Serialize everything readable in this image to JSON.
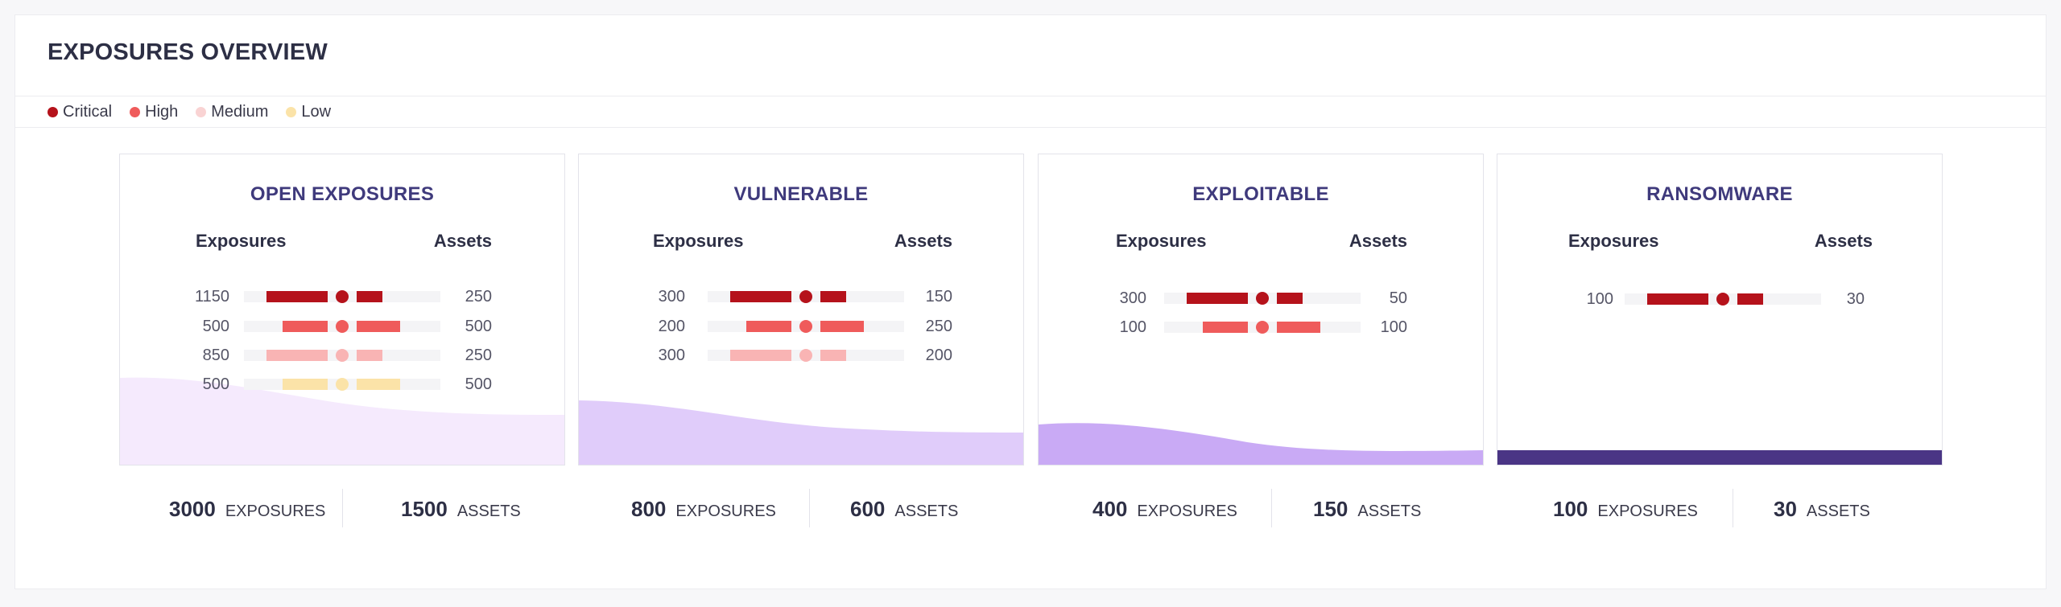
{
  "panel": {
    "title": "EXPOSURES OVERVIEW"
  },
  "legend": [
    {
      "label": "Critical",
      "color": "#b5121b"
    },
    {
      "label": "High",
      "color": "#ef5b5b"
    },
    {
      "label": "Medium",
      "color": "#f9d3d3"
    },
    {
      "label": "Low",
      "color": "#fbe3a8"
    }
  ],
  "colors": {
    "critical": "#b5121b",
    "high": "#ef5b5b",
    "medium": "#f9b4b4",
    "low": "#fbe3a8",
    "track": "#f4f4f6",
    "wave_1": "#f5eafd",
    "wave_2": "#e0ccfa",
    "wave_3": "#c9aaf5",
    "wave_4": "#4a3585"
  },
  "cards": [
    {
      "title": "OPEN EXPOSURES",
      "col_left": "Exposures",
      "col_right": "Assets",
      "rows": [
        {
          "level": "critical",
          "exposures": "1150",
          "assets": "250"
        },
        {
          "level": "high",
          "exposures": "500",
          "assets": "500"
        },
        {
          "level": "medium",
          "exposures": "850",
          "assets": "250"
        },
        {
          "level": "low",
          "exposures": "500",
          "assets": "500"
        }
      ],
      "total_exposures": "3000",
      "exposures_label": "EXPOSURES",
      "total_assets": "1500",
      "assets_label": "ASSETS"
    },
    {
      "title": "VULNERABLE",
      "col_left": "Exposures",
      "col_right": "Assets",
      "rows": [
        {
          "level": "critical",
          "exposures": "300",
          "assets": "150"
        },
        {
          "level": "high",
          "exposures": "200",
          "assets": "250"
        },
        {
          "level": "medium",
          "exposures": "300",
          "assets": "200"
        }
      ],
      "total_exposures": "800",
      "exposures_label": "EXPOSURES",
      "total_assets": "600",
      "assets_label": "ASSETS"
    },
    {
      "title": "EXPLOITABLE",
      "col_left": "Exposures",
      "col_right": "Assets",
      "rows": [
        {
          "level": "critical",
          "exposures": "300",
          "assets": "50"
        },
        {
          "level": "high",
          "exposures": "100",
          "assets": "100"
        }
      ],
      "total_exposures": "400",
      "exposures_label": "EXPOSURES",
      "total_assets": "150",
      "assets_label": "ASSETS"
    },
    {
      "title": "RANSOMWARE",
      "col_left": "Exposures",
      "col_right": "Assets",
      "rows": [
        {
          "level": "critical",
          "exposures": "100",
          "assets": "30"
        }
      ],
      "total_exposures": "100",
      "exposures_label": "EXPOSURES",
      "total_assets": "30",
      "assets_label": "ASSETS"
    }
  ]
}
